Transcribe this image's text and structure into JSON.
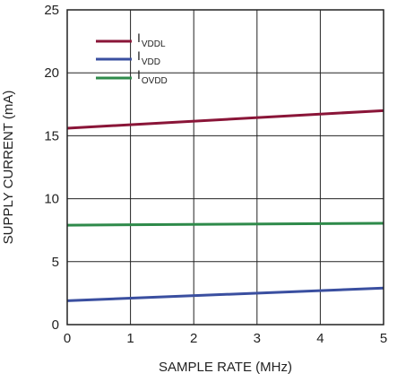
{
  "chart_data": {
    "type": "line",
    "title": "",
    "xlabel": "SAMPLE RATE (MHz)",
    "ylabel": "SUPPLY CURRENT (mA)",
    "xlim": [
      0,
      5
    ],
    "ylim": [
      0,
      25
    ],
    "xticks": [
      0,
      1,
      2,
      3,
      4,
      5
    ],
    "yticks": [
      0,
      5,
      10,
      15,
      20,
      25
    ],
    "grid": true,
    "legend_position": "top-left",
    "series": [
      {
        "name": "I",
        "subscript": "VDDL",
        "color": "#8a1538",
        "x": [
          0,
          5
        ],
        "y": [
          15.6,
          17.0
        ]
      },
      {
        "name": "I",
        "subscript": "VDD",
        "color": "#3a4fa0",
        "x": [
          0,
          5
        ],
        "y": [
          1.9,
          2.9
        ]
      },
      {
        "name": "I",
        "subscript": "OVDD",
        "color": "#2e8a4a",
        "x": [
          0,
          5
        ],
        "y": [
          7.9,
          8.05
        ]
      }
    ]
  }
}
